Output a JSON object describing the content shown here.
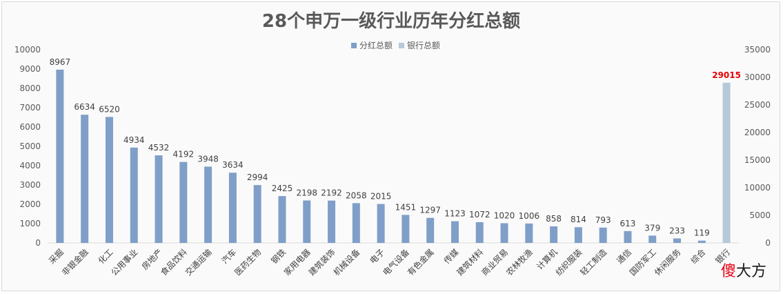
{
  "chart_data": {
    "type": "bar",
    "title": "28个申万一级行业历年分红总额",
    "legend_position": "top-center",
    "legend": [
      {
        "name": "分红总额",
        "color": "#7f9fc8"
      },
      {
        "name": "银行总额",
        "color": "#b5c9d9"
      }
    ],
    "categories": [
      "采掘",
      "非银金融",
      "化工",
      "公用事业",
      "房地产",
      "食品饮料",
      "交通运输",
      "汽车",
      "医药生物",
      "钢铁",
      "家用电器",
      "建筑装饰",
      "机械设备",
      "电子",
      "电气设备",
      "有色金属",
      "传媒",
      "建筑材料",
      "商业贸易",
      "农林牧渔",
      "计算机",
      "纺织服装",
      "轻工制造",
      "通信",
      "国防军工",
      "休闲服务",
      "综合",
      "银行"
    ],
    "series": [
      {
        "name": "分红总额",
        "axis": "left",
        "color": "#7f9fc8",
        "values": [
          8967,
          6634,
          6520,
          4934,
          4532,
          4192,
          3948,
          3634,
          2994,
          2425,
          2198,
          2192,
          2058,
          2015,
          1451,
          1297,
          1123,
          1072,
          1020,
          1006,
          858,
          814,
          793,
          613,
          379,
          233,
          119,
          null
        ]
      },
      {
        "name": "银行总额",
        "axis": "right",
        "color": "#b5c9d9",
        "highlight_label_color": "#e60000",
        "values": [
          null,
          null,
          null,
          null,
          null,
          null,
          null,
          null,
          null,
          null,
          null,
          null,
          null,
          null,
          null,
          null,
          null,
          null,
          null,
          null,
          null,
          null,
          null,
          null,
          null,
          null,
          null,
          29015
        ]
      }
    ],
    "y_left": {
      "min": 0,
      "max": 10000,
      "step": 1000,
      "ticks": [
        "0",
        "1000",
        "2000",
        "3000",
        "4000",
        "5000",
        "6000",
        "7000",
        "8000",
        "9000",
        "10000"
      ]
    },
    "y_right": {
      "min": 0,
      "max": 35000,
      "step": 5000,
      "ticks": [
        "0",
        "5000",
        "10000",
        "15000",
        "20000",
        "25000",
        "30000",
        "35000"
      ]
    },
    "grid": false,
    "xlabel": "",
    "ylabel": ""
  },
  "watermark": {
    "part1": "傻",
    "part2": "大方"
  }
}
